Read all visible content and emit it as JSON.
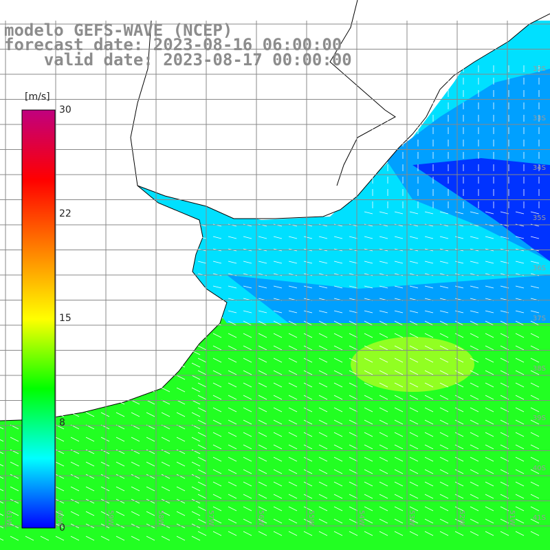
{
  "title": {
    "line1": "modelo GEFS-WAVE (NCEP)",
    "line2": "forecast date: 2023-08-16 06:00:00",
    "line3": "valid date: 2023-08-17 00:00:00"
  },
  "colorbar": {
    "unit": "[m/s]",
    "min": 0,
    "max": 30,
    "ticks": [
      "30",
      "22",
      "15",
      "8",
      "0"
    ],
    "tick_values": [
      30,
      22,
      15,
      8,
      0
    ],
    "colors": [
      "#0000ff",
      "#00ffff",
      "#00ff00",
      "#ffff00",
      "#ff8000",
      "#ff0000",
      "#c0007f"
    ]
  },
  "map": {
    "lat_labels": [
      "32S",
      "33S",
      "34S",
      "35S",
      "36S",
      "37S",
      "38S",
      "39S",
      "40S",
      "41S"
    ],
    "lon_labels": [
      "61W",
      "60W",
      "59W",
      "58W",
      "57W",
      "56W",
      "55W",
      "54W",
      "53W",
      "52W",
      "51W"
    ],
    "field_colors": {
      "calm": "#0033ff",
      "light": "#00a0ff",
      "moderate": "#00e0ff",
      "strong": "#22ff22",
      "strongest": "#c0ff22"
    },
    "land_color": "#ffffff",
    "grid_color": "#888888",
    "arrow_color": "#ffffff"
  }
}
